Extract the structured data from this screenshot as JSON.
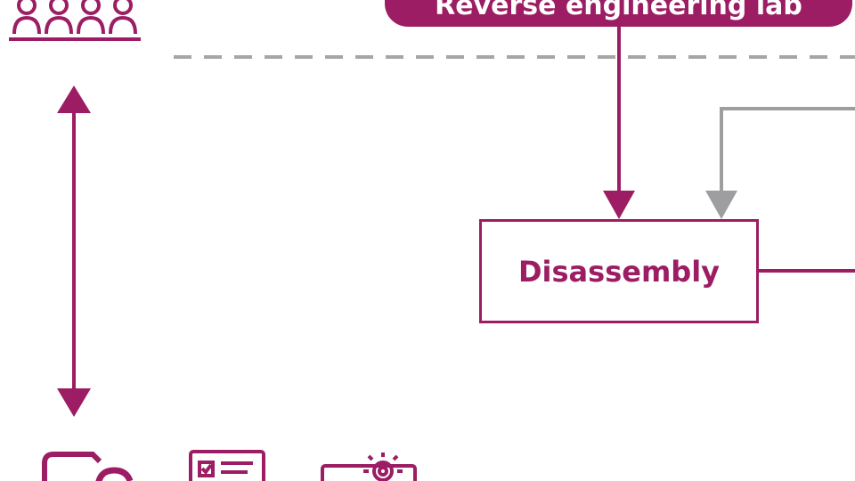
{
  "colors": {
    "accent": "#9c1d63",
    "connector_gray": "#9e9ea0"
  },
  "top_box": {
    "label": "Reverse engineering lab"
  },
  "process_box": {
    "label": "Disassembly"
  },
  "icons": [
    "people-group-icon",
    "double-arrow-icon",
    "folder-cloud-icon",
    "checklist-card-icon",
    "gear-device-icon"
  ]
}
